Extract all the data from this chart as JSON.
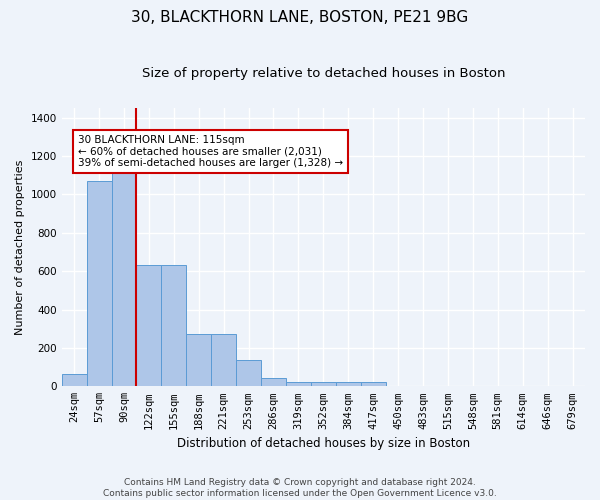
{
  "title1": "30, BLACKTHORN LANE, BOSTON, PE21 9BG",
  "title2": "Size of property relative to detached houses in Boston",
  "xlabel": "Distribution of detached houses by size in Boston",
  "ylabel": "Number of detached properties",
  "footnote": "Contains HM Land Registry data © Crown copyright and database right 2024.\nContains public sector information licensed under the Open Government Licence v3.0.",
  "bar_labels": [
    "24sqm",
    "57sqm",
    "90sqm",
    "122sqm",
    "155sqm",
    "188sqm",
    "221sqm",
    "253sqm",
    "286sqm",
    "319sqm",
    "352sqm",
    "384sqm",
    "417sqm",
    "450sqm",
    "483sqm",
    "515sqm",
    "548sqm",
    "581sqm",
    "614sqm",
    "646sqm",
    "679sqm"
  ],
  "bar_values": [
    63,
    1070,
    1155,
    630,
    630,
    275,
    275,
    135,
    45,
    20,
    20,
    20,
    20,
    0,
    0,
    0,
    0,
    0,
    0,
    0,
    0
  ],
  "bar_color": "#aec6e8",
  "bar_edge_color": "#5b9bd5",
  "vline_x_index": 2,
  "vline_color": "#cc0000",
  "annotation_text": "30 BLACKTHORN LANE: 115sqm\n← 60% of detached houses are smaller (2,031)\n39% of semi-detached houses are larger (1,328) →",
  "annotation_box_color": "#ffffff",
  "annotation_box_edge_color": "#cc0000",
  "ylim": [
    0,
    1450
  ],
  "background_color": "#eef3fa",
  "grid_color": "#ffffff",
  "title1_fontsize": 11,
  "title2_fontsize": 9.5,
  "xlabel_fontsize": 8.5,
  "ylabel_fontsize": 8,
  "tick_fontsize": 7.5,
  "annotation_fontsize": 7.5,
  "footnote_fontsize": 6.5
}
